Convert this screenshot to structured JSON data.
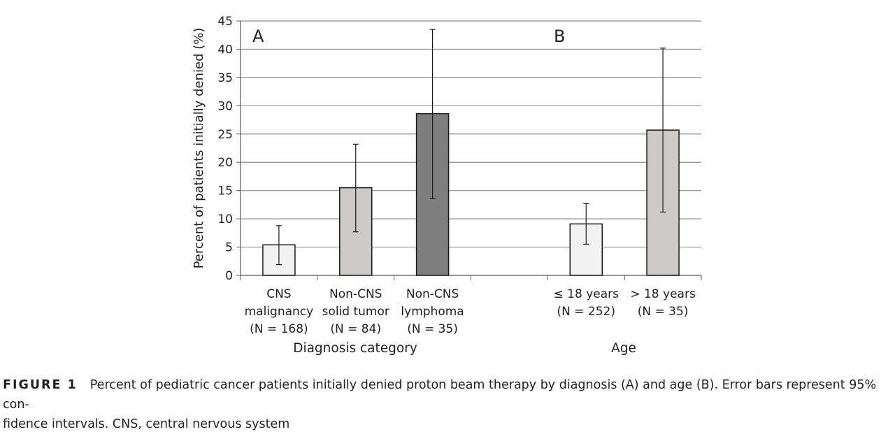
{
  "chart_data": {
    "type": "bar",
    "ylabel": "Percent of patients initially denied (%)",
    "ylim": [
      0,
      45
    ],
    "yticks": [
      0,
      5,
      10,
      15,
      20,
      25,
      30,
      35,
      40,
      45
    ],
    "grid": true,
    "panels": [
      {
        "label": "A",
        "xlabel": "Diagnosis category",
        "bars": [
          {
            "category": [
              "CNS",
              "malignancy",
              "(N = 168)"
            ],
            "value": 5.4,
            "ci": [
              1.9,
              8.8
            ],
            "color": "#f2f2f2"
          },
          {
            "category": [
              "Non-CNS",
              "solid tumor",
              "(N = 84)"
            ],
            "value": 15.5,
            "ci": [
              7.7,
              23.2
            ],
            "color": "#cbcac7"
          },
          {
            "category": [
              "Non-CNS",
              "lymphoma",
              "(N = 35)"
            ],
            "value": 28.6,
            "ci": [
              13.6,
              43.5
            ],
            "color": "#7f7f7f"
          }
        ]
      },
      {
        "label": "B",
        "xlabel": "Age",
        "bars": [
          {
            "category": [
              "≤ 18 years",
              "(N = 252)"
            ],
            "value": 9.1,
            "ci": [
              5.5,
              12.7
            ],
            "color": "#f2f2f2"
          },
          {
            "category": [
              "> 18 years",
              "(N = 35)"
            ],
            "value": 25.7,
            "ci": [
              11.2,
              40.2
            ],
            "color": "#cbcac7"
          }
        ]
      }
    ]
  },
  "caption": {
    "label": "FIGURE 1",
    "line1": "Percent of pediatric cancer patients initially denied proton beam therapy by diagnosis (A) and age (B). Error bars represent 95% con-",
    "line2": "fidence intervals. CNS, central nervous system"
  }
}
